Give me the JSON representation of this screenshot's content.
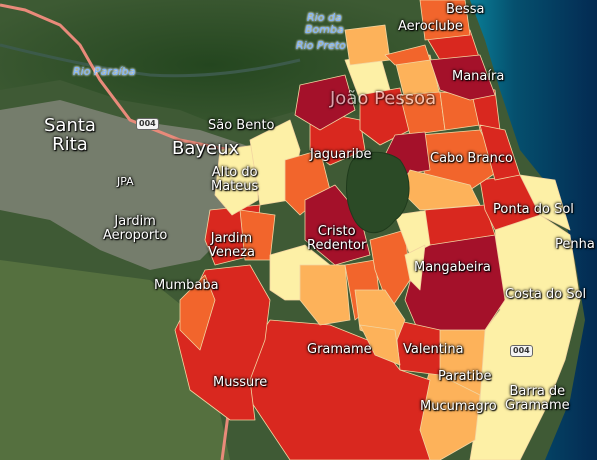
{
  "map": {
    "places": {
      "santa_rita": "Santa\nRita",
      "bayeux": "Bayeux",
      "sao_bento": "São Bento",
      "jardim_aeroporto": "Jardim\nAeroporto",
      "jardim_veneza": "Jardim\nVeneza",
      "mumbaba": "Mumbaba",
      "mussure": "Mussure",
      "gramame": "Gramame",
      "valentina": "Valentina",
      "paratibe": "Paratibe",
      "mucumagro": "Mucumagro",
      "barra_de_gramame": "Barra de\nGramame",
      "costa_do_sol": "Costa do Sol",
      "mangabeira": "Mangabeira",
      "ponta_do_sol": "Ponta do Sol",
      "penha": "Penha",
      "cristo_redentor": "Cristo\nRedentor",
      "cabo_branco": "Cabo Branco",
      "manaira": "Manaíra",
      "aeroclube": "Aeroclube",
      "bessa": "Bessa",
      "joao_pessoa": "João Pessoa",
      "ama_matos": "Alto do\nMateus",
      "jaguaribe": "Jaguaribe",
      "jpa": "JPA"
    },
    "rivers": {
      "rio_paraiba": "Rio Paraíba",
      "rio_da_bomba": "Rio da\nBomba",
      "rio_preto": "Rio Preto"
    },
    "road_shields": {
      "br004_west": "004",
      "br004_south": "004"
    },
    "colors": {
      "class_1": "#fdf0a6",
      "class_2": "#fdb25a",
      "class_3": "#f2652c",
      "class_4": "#d9281f",
      "class_5": "#a4112a",
      "road": "#e98a7a",
      "ocean": "#0a6f8f",
      "ocean_deep": "#042a55",
      "forest": "#2c4f29",
      "urban": "#8a8d80"
    }
  }
}
